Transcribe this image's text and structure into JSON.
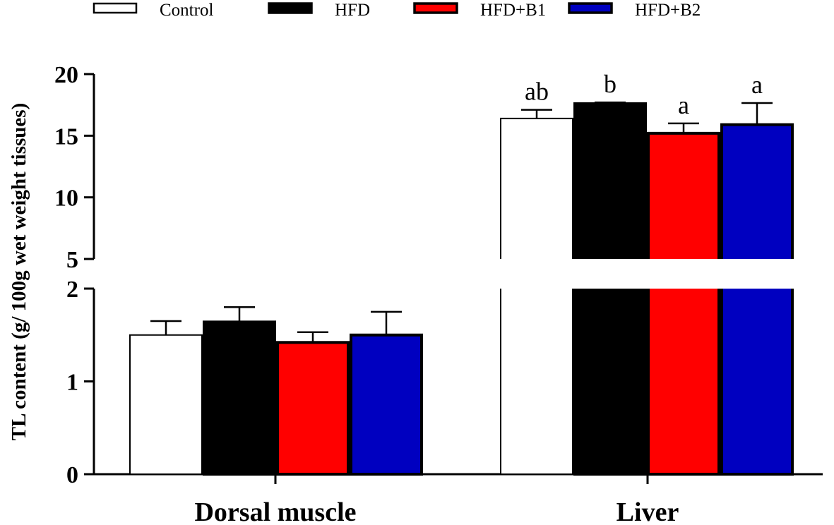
{
  "chart_data": {
    "type": "bar",
    "title": "",
    "xlabel": "",
    "ylabel": "TL content (g/ 100g wet weight tissues)",
    "categories": [
      "Dorsal muscle",
      "Liver"
    ],
    "series": [
      {
        "name": "Control",
        "color": "#ffffff",
        "values": [
          1.5,
          16.4
        ],
        "errors": [
          0.15,
          0.7
        ],
        "labels": [
          "",
          "ab"
        ]
      },
      {
        "name": "HFD",
        "color": "#000000",
        "values": [
          1.64,
          17.6
        ],
        "errors": [
          0.16,
          0.1
        ],
        "labels": [
          "",
          "b"
        ]
      },
      {
        "name": "HFD+B1",
        "color": "#ff0000",
        "values": [
          1.42,
          15.2
        ],
        "errors": [
          0.11,
          0.8
        ],
        "labels": [
          "",
          "a"
        ]
      },
      {
        "name": "HFD+B2",
        "color": "#0000c0",
        "values": [
          1.5,
          15.9
        ],
        "errors": [
          0.25,
          1.75
        ],
        "labels": [
          "",
          "a"
        ]
      }
    ],
    "axis": {
      "broken": true,
      "lower_segment": {
        "range": [
          0,
          2
        ],
        "ticks": [
          0,
          1,
          2
        ],
        "tick_labels": [
          "0",
          "1",
          "2"
        ]
      },
      "upper_segment": {
        "range": [
          5,
          20
        ],
        "ticks": [
          5,
          10,
          15,
          20
        ],
        "tick_labels": [
          "5",
          "10",
          "15",
          "20"
        ]
      }
    },
    "legend": {
      "position": "top",
      "entries": [
        "Control",
        "HFD",
        "HFD+B1",
        "HFD+B2"
      ]
    },
    "grid": false
  }
}
